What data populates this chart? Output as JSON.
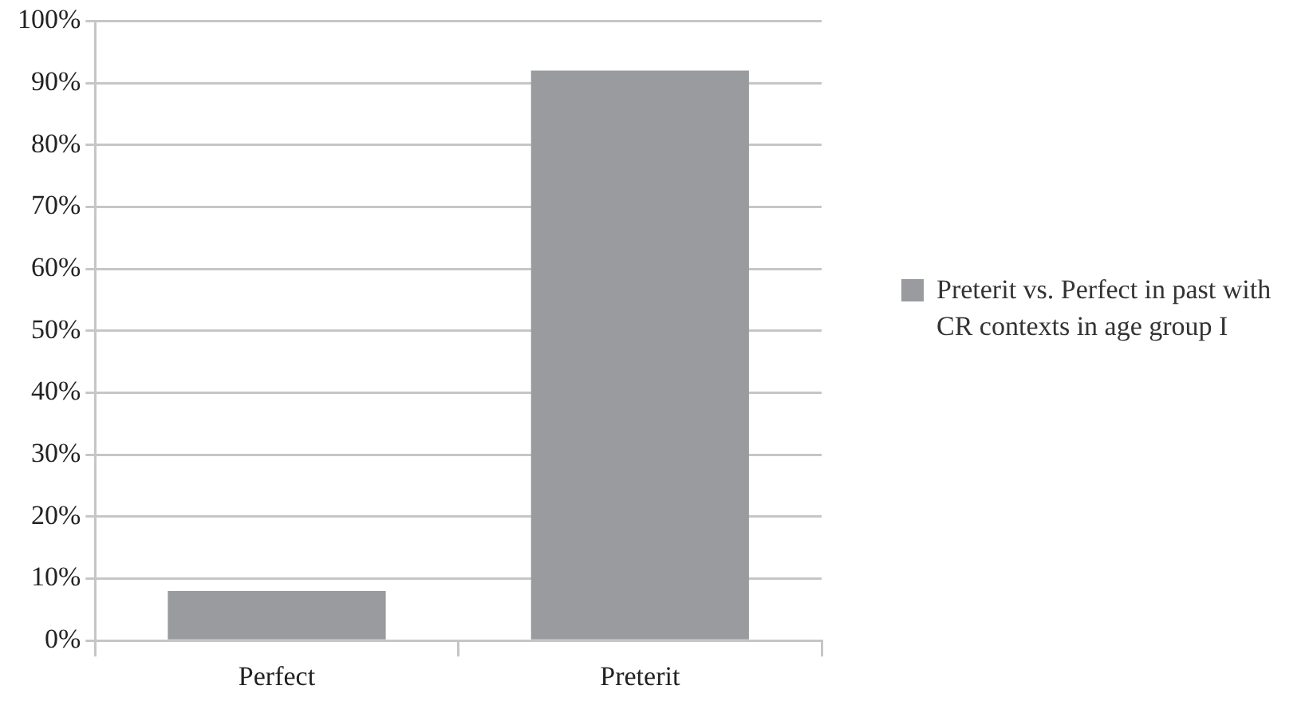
{
  "chart_data": {
    "type": "bar",
    "categories": [
      "Perfect",
      "Preterit"
    ],
    "series": [
      {
        "name": "Preterit vs. Perfect in past with CR contexts in age group I",
        "color": "#9a9b9f",
        "values": [
          8,
          92
        ]
      }
    ],
    "ylim": [
      0,
      100
    ],
    "yticks": [
      {
        "value": 0,
        "label": "0%"
      },
      {
        "value": 10,
        "label": "10%"
      },
      {
        "value": 20,
        "label": "20%"
      },
      {
        "value": 30,
        "label": "30%"
      },
      {
        "value": 40,
        "label": "40%"
      },
      {
        "value": 50,
        "label": "50%"
      },
      {
        "value": 60,
        "label": "60%"
      },
      {
        "value": 70,
        "label": "70%"
      },
      {
        "value": 80,
        "label": "80%"
      },
      {
        "value": 90,
        "label": "90%"
      },
      {
        "value": 100,
        "label": "100%"
      }
    ],
    "grid": "y",
    "legend": "right"
  }
}
